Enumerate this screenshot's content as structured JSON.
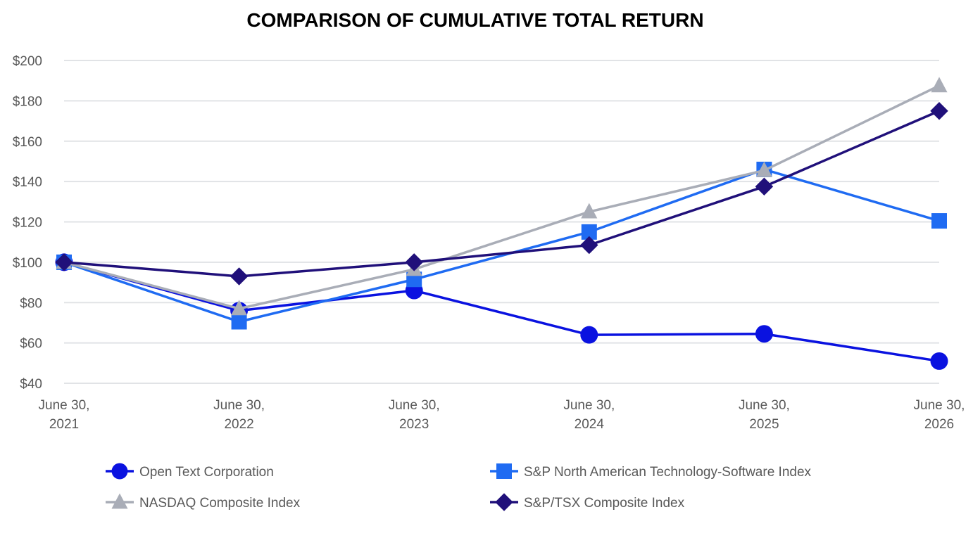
{
  "chart_data": {
    "type": "line",
    "title": "COMPARISON OF CUMULATIVE TOTAL RETURN",
    "xlabel": "",
    "ylabel": "",
    "categories": [
      [
        "June 30,",
        "2021"
      ],
      [
        "June 30,",
        "2022"
      ],
      [
        "June 30,",
        "2023"
      ],
      [
        "June 30,",
        "2024"
      ],
      [
        "June 30,",
        "2025"
      ],
      [
        "June 30,",
        "2026"
      ]
    ],
    "ylim": [
      40,
      200
    ],
    "yticks": [
      40,
      60,
      80,
      100,
      120,
      140,
      160,
      180,
      200
    ],
    "ytick_labels": [
      "$40",
      "$60",
      "$80",
      "$100",
      "$120",
      "$140",
      "$160",
      "$180",
      "$200"
    ],
    "grid": "horizontal",
    "legend_position": "bottom",
    "series": [
      {
        "name": "Open Text Corporation",
        "values": [
          100,
          76,
          86,
          64,
          64.5,
          51
        ],
        "color": "#0a12e0",
        "marker": "circle"
      },
      {
        "name": "S&P North American Technology-Software Index",
        "values": [
          100,
          70.5,
          91.5,
          115,
          146,
          120.5
        ],
        "color": "#1f6bf2",
        "marker": "square"
      },
      {
        "name": "NASDAQ Composite Index",
        "values": [
          100,
          77,
          96.5,
          125,
          145.5,
          187.5
        ],
        "color": "#a9adb7",
        "marker": "triangle"
      },
      {
        "name": "S&P/TSX Composite Index",
        "values": [
          100,
          93,
          100,
          108.5,
          137.5,
          175
        ],
        "color": "#20107a",
        "marker": "diamond"
      }
    ]
  }
}
